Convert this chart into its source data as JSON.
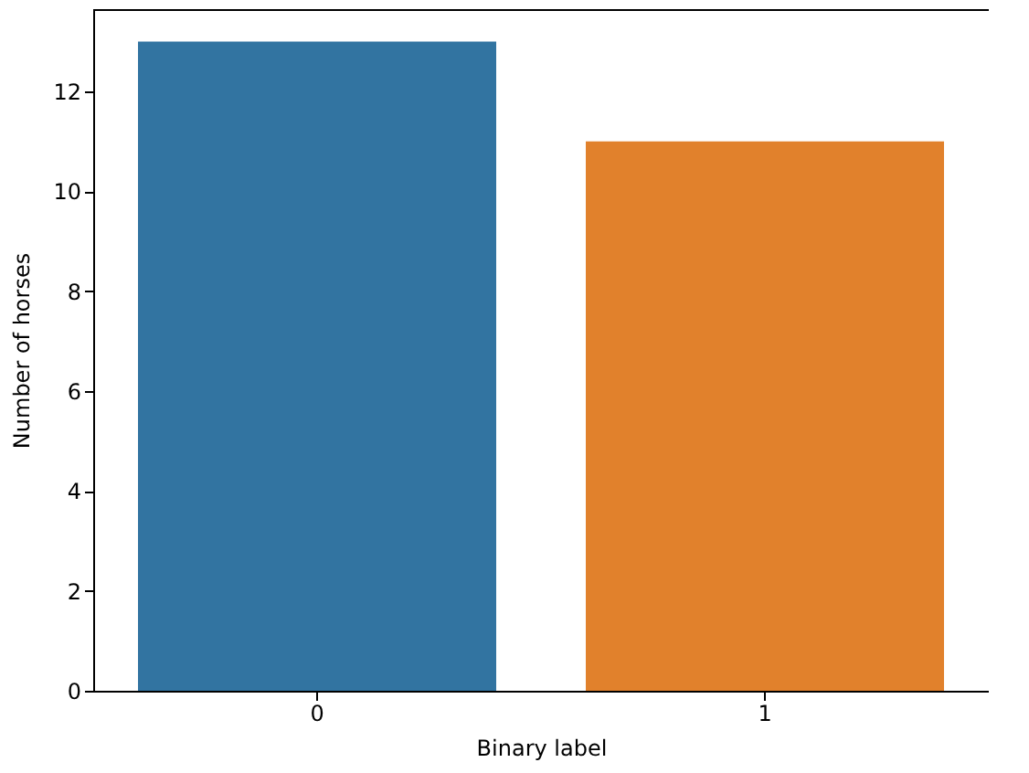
{
  "chart_data": {
    "type": "bar",
    "xlabel": "Binary label",
    "ylabel": "Number of horses",
    "categories": [
      "0",
      "1"
    ],
    "values": [
      13,
      11
    ],
    "colors": [
      "#3274a1",
      "#e1812c"
    ],
    "ylim": [
      0,
      13.65
    ],
    "yticks": [
      0,
      2,
      4,
      6,
      8,
      10,
      12
    ],
    "grid": false
  }
}
